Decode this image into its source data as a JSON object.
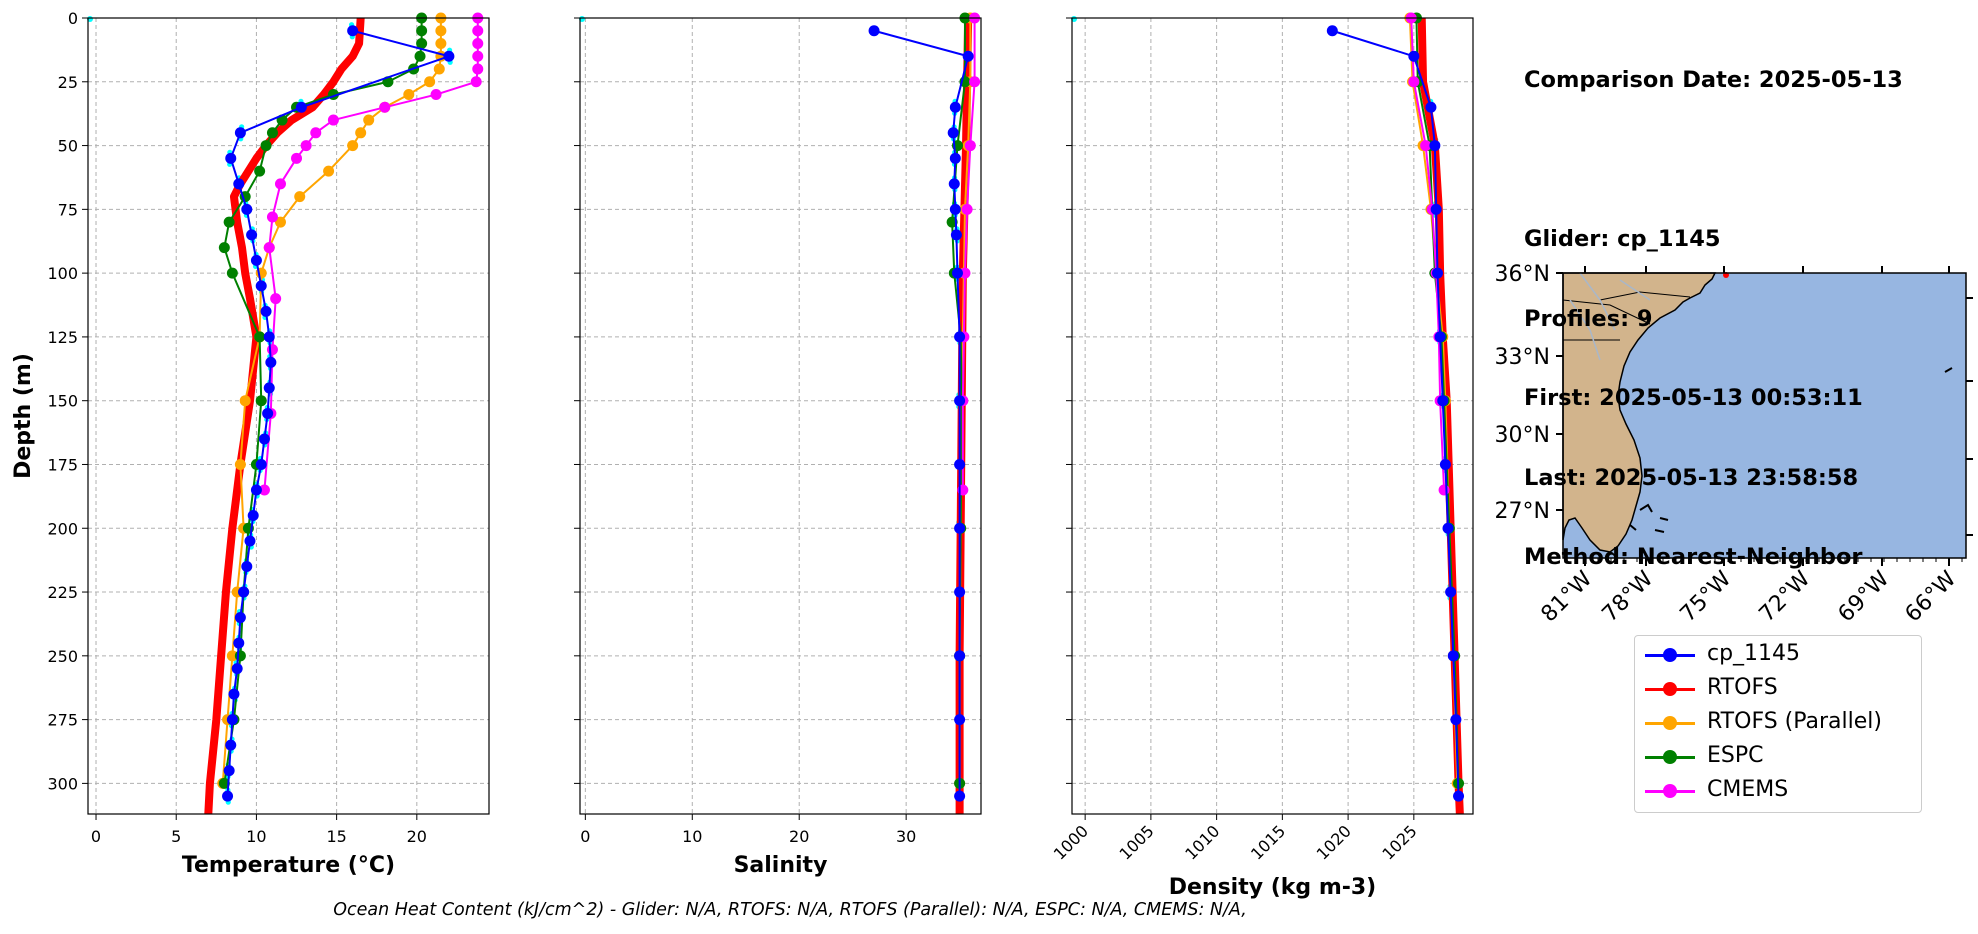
{
  "chart_data": [
    {
      "type": "line",
      "xlabel": "Temperature (°C)",
      "ylabel": "Depth (m)",
      "xlim": [
        -0.5,
        24.5
      ],
      "ylim": [
        312,
        0
      ],
      "y_inverted": true,
      "grid": true,
      "xticks": [
        0,
        5,
        10,
        15,
        20
      ],
      "yticks": [
        0,
        25,
        50,
        75,
        100,
        125,
        150,
        175,
        200,
        225,
        250,
        275,
        300
      ],
      "series": [
        {
          "name": "cp_1145",
          "color": "#0000ff",
          "marker": true,
          "depth": [
            5,
            15,
            35,
            45,
            55,
            65,
            75,
            85,
            95,
            105,
            115,
            125,
            135,
            145,
            155,
            165,
            175,
            185,
            195,
            205,
            215,
            225,
            235,
            245,
            255,
            265,
            275,
            285,
            295,
            305
          ],
          "values": [
            16.0,
            22.0,
            12.8,
            9.0,
            8.4,
            8.9,
            9.4,
            9.7,
            10.0,
            10.3,
            10.6,
            10.8,
            10.9,
            10.8,
            10.7,
            10.5,
            10.3,
            10.0,
            9.8,
            9.6,
            9.4,
            9.2,
            9.0,
            8.9,
            8.8,
            8.6,
            8.5,
            8.4,
            8.3,
            8.2
          ]
        },
        {
          "name": "RTOFS",
          "color": "#ff0000",
          "marker": false,
          "linewidth": 8,
          "depth": [
            0,
            10,
            15,
            20,
            25,
            30,
            35,
            40,
            45,
            50,
            55,
            60,
            65,
            70,
            80,
            90,
            100,
            110,
            125,
            150,
            175,
            200,
            225,
            250,
            275,
            300,
            312
          ],
          "values": [
            16.5,
            16.4,
            16.0,
            15.3,
            14.8,
            14.2,
            13.5,
            12.2,
            11.3,
            10.6,
            10.0,
            9.5,
            9.0,
            8.6,
            8.8,
            9.1,
            9.3,
            9.6,
            10.0,
            9.6,
            9.0,
            8.5,
            8.1,
            7.8,
            7.5,
            7.1,
            7.0
          ]
        },
        {
          "name": "RTOFS (Parallel)",
          "color": "#ffa500",
          "marker": true,
          "depth": [
            0,
            5,
            10,
            15,
            20,
            25,
            30,
            35,
            40,
            45,
            50,
            60,
            70,
            80,
            90,
            100,
            125,
            150,
            175,
            200,
            225,
            250,
            275,
            300
          ],
          "values": [
            21.5,
            21.5,
            21.5,
            21.5,
            21.4,
            20.8,
            19.5,
            18.0,
            17.0,
            16.5,
            16.0,
            14.5,
            12.7,
            11.5,
            10.8,
            10.3,
            10.2,
            9.3,
            9.0,
            9.2,
            8.8,
            8.5,
            8.2,
            7.9
          ]
        },
        {
          "name": "ESPC",
          "color": "#008000",
          "marker": true,
          "depth": [
            0,
            5,
            10,
            15,
            20,
            25,
            30,
            35,
            40,
            45,
            50,
            60,
            70,
            80,
            90,
            100,
            125,
            150,
            175,
            200,
            225,
            250,
            275,
            300
          ],
          "values": [
            20.3,
            20.3,
            20.3,
            20.2,
            19.8,
            18.2,
            14.8,
            12.5,
            11.6,
            11.0,
            10.6,
            10.2,
            9.3,
            8.3,
            8.0,
            8.5,
            10.2,
            10.3,
            10.0,
            9.5,
            9.2,
            9.0,
            8.6,
            8.0
          ]
        },
        {
          "name": "CMEMS",
          "color": "#ff00ff",
          "marker": true,
          "depth": [
            0,
            5,
            10,
            15,
            20,
            25,
            30,
            35,
            40,
            45,
            50,
            55,
            65,
            78,
            90,
            110,
            130,
            155,
            185
          ],
          "values": [
            23.8,
            23.8,
            23.8,
            23.8,
            23.8,
            23.7,
            21.2,
            18.0,
            14.8,
            13.7,
            13.1,
            12.5,
            11.5,
            11.0,
            10.8,
            11.2,
            11.0,
            10.9,
            10.5
          ]
        }
      ]
    },
    {
      "type": "line",
      "xlabel": "Salinity",
      "ylim": [
        312,
        0
      ],
      "y_inverted": true,
      "xlim": [
        -0.5,
        37.0
      ],
      "grid": true,
      "xticks": [
        0,
        10,
        20,
        30
      ],
      "series": [
        {
          "name": "cp_1145",
          "depth": [
            5,
            15,
            35,
            45,
            55,
            65,
            75,
            85,
            100,
            125,
            150,
            175,
            200,
            225,
            250,
            275,
            305
          ],
          "values": [
            27.0,
            35.8,
            34.6,
            34.4,
            34.6,
            34.5,
            34.6,
            34.7,
            34.8,
            35.0,
            35.0,
            35.0,
            35.0,
            35.0,
            35.0,
            35.0,
            35.0
          ]
        },
        {
          "name": "RTOFS",
          "depth": [
            0,
            50,
            100,
            150,
            200,
            250,
            300,
            312
          ],
          "values": [
            35.8,
            35.6,
            35.3,
            35.2,
            35.1,
            35.0,
            35.0,
            35.0
          ]
        },
        {
          "name": "RTOFS (Parallel)",
          "depth": [
            0,
            25,
            50,
            75,
            100,
            125,
            150,
            200,
            250,
            300
          ],
          "values": [
            36.0,
            36.0,
            35.8,
            35.5,
            35.4,
            35.3,
            35.2,
            35.1,
            35.0,
            35.0
          ]
        },
        {
          "name": "ESPC",
          "depth": [
            0,
            25,
            50,
            80,
            100,
            125,
            150,
            200,
            250,
            300
          ],
          "values": [
            35.5,
            35.5,
            34.8,
            34.3,
            34.5,
            35.1,
            35.2,
            35.1,
            35.0,
            35.0
          ]
        },
        {
          "name": "CMEMS",
          "depth": [
            0,
            25,
            50,
            75,
            100,
            125,
            150,
            185
          ],
          "values": [
            36.4,
            36.4,
            36.0,
            35.7,
            35.5,
            35.4,
            35.3,
            35.3
          ]
        }
      ]
    },
    {
      "type": "line",
      "xlabel": "Density (kg m-3)",
      "ylim": [
        312,
        0
      ],
      "y_inverted": true,
      "xlim": [
        999.0,
        1029.5
      ],
      "grid": true,
      "xticks": [
        1000,
        1005,
        1010,
        1015,
        1020,
        1025
      ],
      "series": [
        {
          "name": "cp_1145",
          "depth": [
            5,
            15,
            35,
            50,
            75,
            100,
            125,
            150,
            175,
            200,
            225,
            250,
            275,
            305
          ],
          "values": [
            1018.8,
            1025.0,
            1026.3,
            1026.6,
            1026.7,
            1026.8,
            1027.0,
            1027.2,
            1027.4,
            1027.6,
            1027.8,
            1028.0,
            1028.2,
            1028.4
          ]
        },
        {
          "name": "RTOFS",
          "depth": [
            0,
            25,
            50,
            75,
            100,
            125,
            150,
            200,
            250,
            300,
            312
          ],
          "values": [
            1025.6,
            1025.7,
            1026.6,
            1026.9,
            1027.0,
            1027.2,
            1027.5,
            1027.8,
            1028.1,
            1028.4,
            1028.5
          ]
        },
        {
          "name": "RTOFS (Parallel)",
          "depth": [
            0,
            25,
            50,
            75,
            100,
            125,
            150,
            200,
            250,
            300
          ],
          "values": [
            1024.7,
            1024.9,
            1025.7,
            1026.3,
            1026.7,
            1027.2,
            1027.4,
            1027.7,
            1028.0,
            1028.3
          ]
        },
        {
          "name": "ESPC",
          "depth": [
            0,
            25,
            50,
            75,
            100,
            125,
            150,
            200,
            250,
            300
          ],
          "values": [
            1025.2,
            1025.3,
            1026.2,
            1026.4,
            1026.6,
            1027.1,
            1027.3,
            1027.7,
            1028.1,
            1028.4
          ]
        },
        {
          "name": "CMEMS",
          "depth": [
            0,
            25,
            50,
            75,
            100,
            125,
            150,
            185
          ],
          "values": [
            1024.8,
            1025.0,
            1025.9,
            1026.4,
            1026.7,
            1026.9,
            1027.0,
            1027.3
          ]
        }
      ]
    }
  ],
  "series_styles": {
    "cp_1145": "#0000ff",
    "RTOFS": "#ff0000",
    "RTOFS (Parallel)": "#ffa500",
    "ESPC": "#008000",
    "CMEMS": "#ff00ff",
    "observations_scatter": "#00ffff"
  },
  "info": {
    "line1": "Comparison Date: 2025-05-13",
    "line2": "Glider: cp_1145",
    "line3": "Profiles: 9",
    "line4": "First: 2025-05-13 00:53:11",
    "line5": "Last: 2025-05-13 23:58:58",
    "line6": "Method: Nearest-Neighbor"
  },
  "map": {
    "lat_ticks": [
      "36°N",
      "33°N",
      "30°N",
      "27°N"
    ],
    "lon_ticks": [
      "81°W",
      "78°W",
      "75°W",
      "72°W",
      "69°W",
      "66°W"
    ],
    "land_color": "#d2b48c",
    "ocean_color": "#97b6e1"
  },
  "legend": {
    "items": [
      {
        "label": "cp_1145",
        "color": "#0000ff"
      },
      {
        "label": "RTOFS",
        "color": "#ff0000"
      },
      {
        "label": "RTOFS (Parallel)",
        "color": "#ffa500"
      },
      {
        "label": "ESPC",
        "color": "#008000"
      },
      {
        "label": "CMEMS",
        "color": "#ff00ff"
      }
    ]
  },
  "caption": "Ocean Heat Content (kJ/cm^2) - Glider: N/A,  RTOFS: N/A,  RTOFS (Parallel): N/A,  ESPC: N/A,  CMEMS: N/A,"
}
